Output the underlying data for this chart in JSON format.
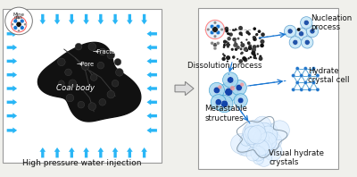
{
  "background_color": "#f0f0ec",
  "left_panel": {
    "bg": "#ffffff",
    "border_color": "#aaaaaa",
    "title": "High pressure water injection",
    "title_fontsize": 6.5,
    "coal_color": "#111111",
    "arrow_color": "#29b6f6",
    "mine_gas_label": "Mine\ngas"
  },
  "right_panel": {
    "bg": "#ffffff",
    "border_color": "#aaaaaa",
    "labels": {
      "nucleation": "Nucleation\nprocess",
      "dissolution": "Dissolution process",
      "hydrate_crystal": "Hydrate\ncrystal cell",
      "metastable": "Metastable\nstructures",
      "visual_hydrate": "Visual hydrate\ncrystals"
    },
    "label_fontsize": 6.2,
    "arrow_color": "#1976d2"
  },
  "fig_width": 4.0,
  "fig_height": 1.98,
  "dpi": 100
}
